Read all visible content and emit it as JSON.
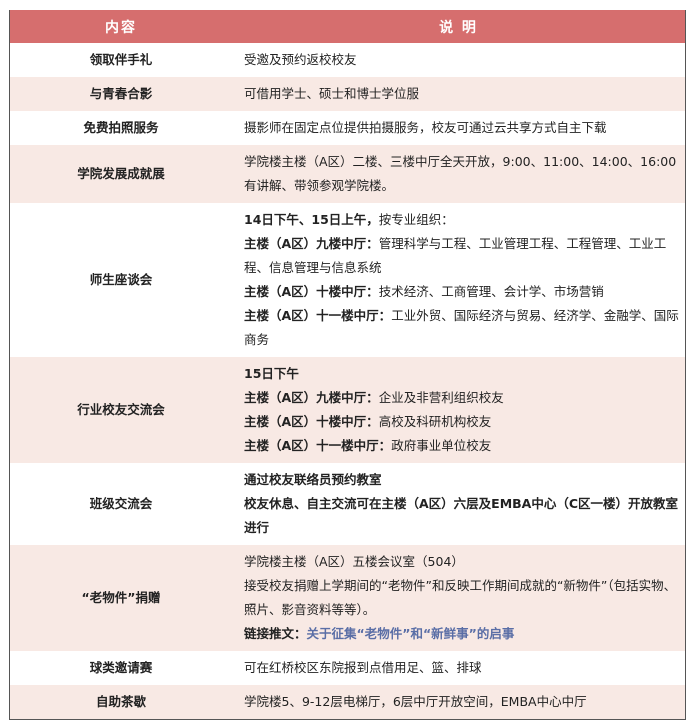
{
  "header": {
    "col1": "内容",
    "col2": "说 明"
  },
  "colors": {
    "header_bg": "#d66e6e",
    "alt_row_bg": "#f8e9e4",
    "link": "#5a6ea6"
  },
  "rows": [
    {
      "item": "领取伴手礼",
      "lines": [
        {
          "b": "",
          "t": "受邀及预约返校校友"
        }
      ]
    },
    {
      "item": "与青春合影",
      "lines": [
        {
          "b": "",
          "t": "可借用学士、硕士和博士学位服"
        }
      ]
    },
    {
      "item": "免费拍照服务",
      "lines": [
        {
          "b": "",
          "t": "摄影师在固定点位提供拍摄服务，校友可通过云共享方式自主下载"
        }
      ]
    },
    {
      "item": "学院发展成就展",
      "lines": [
        {
          "b": "",
          "t": "学院楼主楼（A区）二楼、三楼中厅全天开放，9:00、11:00、14:00、16:00有讲解、带领参观学院楼。"
        }
      ]
    },
    {
      "item": "师生座谈会",
      "lines": [
        {
          "b": "14日下午、15日上午，",
          "t": "按专业组织："
        },
        {
          "b": "主楼（A区）九楼中厅：",
          "t": "管理科学与工程、工业管理工程、工程管理、工业工程、信息管理与信息系统"
        },
        {
          "b": "主楼（A区）十楼中厅：",
          "t": "技术经济、工商管理、会计学、市场营销"
        },
        {
          "b": "主楼（A区）十一楼中厅：",
          "t": "工业外贸、国际经济与贸易、经济学、金融学、国际商务"
        }
      ]
    },
    {
      "item": "行业校友交流会",
      "lines": [
        {
          "b": "15日下午",
          "t": ""
        },
        {
          "b": "主楼（A区）九楼中厅：",
          "t": "企业及非营利组织校友"
        },
        {
          "b": "主楼（A区）十楼中厅：",
          "t": "高校及科研机构校友"
        },
        {
          "b": "主楼（A区）十一楼中厅：",
          "t": "政府事业单位校友"
        }
      ]
    },
    {
      "item": "班级交流会",
      "lines": [
        {
          "b": "通过校友联络员预约教室",
          "t": ""
        },
        {
          "b": "校友休息、自主交流可在主楼（A区）六层及EMBA中心（C区一楼）开放教室进行",
          "t": ""
        }
      ]
    },
    {
      "item": "“老物件”捐赠",
      "lines": [
        {
          "b": "",
          "t": "学院楼主楼（A区）五楼会议室（504）"
        },
        {
          "b": "",
          "t": "接受校友捐赠上学期间的“老物件”和反映工作期间成就的“新物件”（包括实物、照片、影音资料等等）。"
        },
        {
          "b": "链接推文：",
          "t": "",
          "link": "关于征集“老物件”和“新鲜事”的启事"
        }
      ]
    },
    {
      "item": "球类邀请赛",
      "lines": [
        {
          "b": "",
          "t": "可在红桥校区东院报到点借用足、篮、排球"
        }
      ]
    },
    {
      "item": "自助茶歇",
      "lines": [
        {
          "b": "",
          "t": "学院楼5、9-12层电梯厅，6层中厅开放空间，EMBA中心中厅"
        }
      ]
    }
  ]
}
